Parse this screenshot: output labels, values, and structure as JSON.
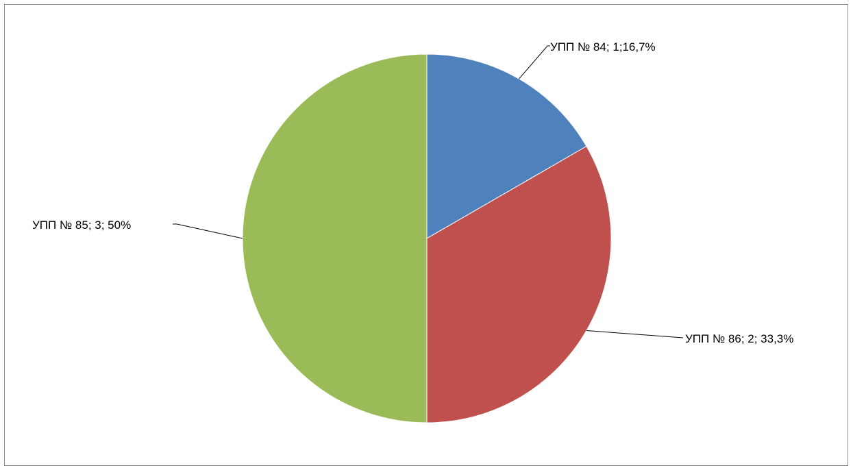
{
  "chart_data": {
    "type": "pie",
    "title": "",
    "slices": [
      {
        "name": "УПП № 84",
        "value": 1,
        "percent": 16.7,
        "label": "УПП № 84; 1;16,7%",
        "color": "#4f81bd"
      },
      {
        "name": "УПП № 86",
        "value": 2,
        "percent": 33.3,
        "label": "УПП № 86; 2; 33,3%",
        "color": "#c0504d"
      },
      {
        "name": "УПП № 85",
        "value": 3,
        "percent": 50,
        "label": "УПП № 85; 3; 50%",
        "color": "#9bbb59"
      }
    ],
    "start_angle": "12 o'clock",
    "direction": "clockwise",
    "legend": "none"
  }
}
